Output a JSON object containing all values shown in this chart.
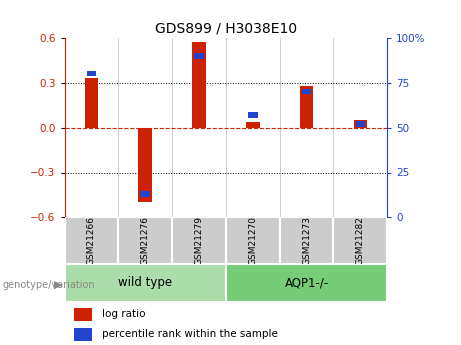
{
  "title": "GDS899 / H3038E10",
  "samples": [
    "GSM21266",
    "GSM21276",
    "GSM21279",
    "GSM21270",
    "GSM21273",
    "GSM21282"
  ],
  "log_ratio": [
    0.33,
    -0.5,
    0.57,
    0.04,
    0.28,
    0.05
  ],
  "percentile_rank": [
    80,
    13,
    90,
    57,
    70,
    52
  ],
  "groups_def": [
    {
      "label": "wild type",
      "start": 0,
      "end": 2,
      "color": "#aaddaa"
    },
    {
      "label": "AQP1-/-",
      "start": 3,
      "end": 5,
      "color": "#77cc77"
    }
  ],
  "ylim_left": [
    -0.6,
    0.6
  ],
  "ylim_right": [
    0,
    100
  ],
  "yticks_left": [
    -0.6,
    -0.3,
    0.0,
    0.3,
    0.6
  ],
  "yticks_right": [
    0,
    25,
    50,
    75,
    100
  ],
  "red_color": "#cc2200",
  "blue_color": "#2244cc",
  "tick_label_fontsize": 7.5,
  "title_fontsize": 10,
  "legend_fontsize": 7.5,
  "group_label_fontsize": 8.5,
  "genotype_label": "genotype/variation",
  "sample_box_color": "#cccccc",
  "plot_bg": "#ffffff",
  "bar_width": 0.25,
  "blue_bar_width": 0.18
}
